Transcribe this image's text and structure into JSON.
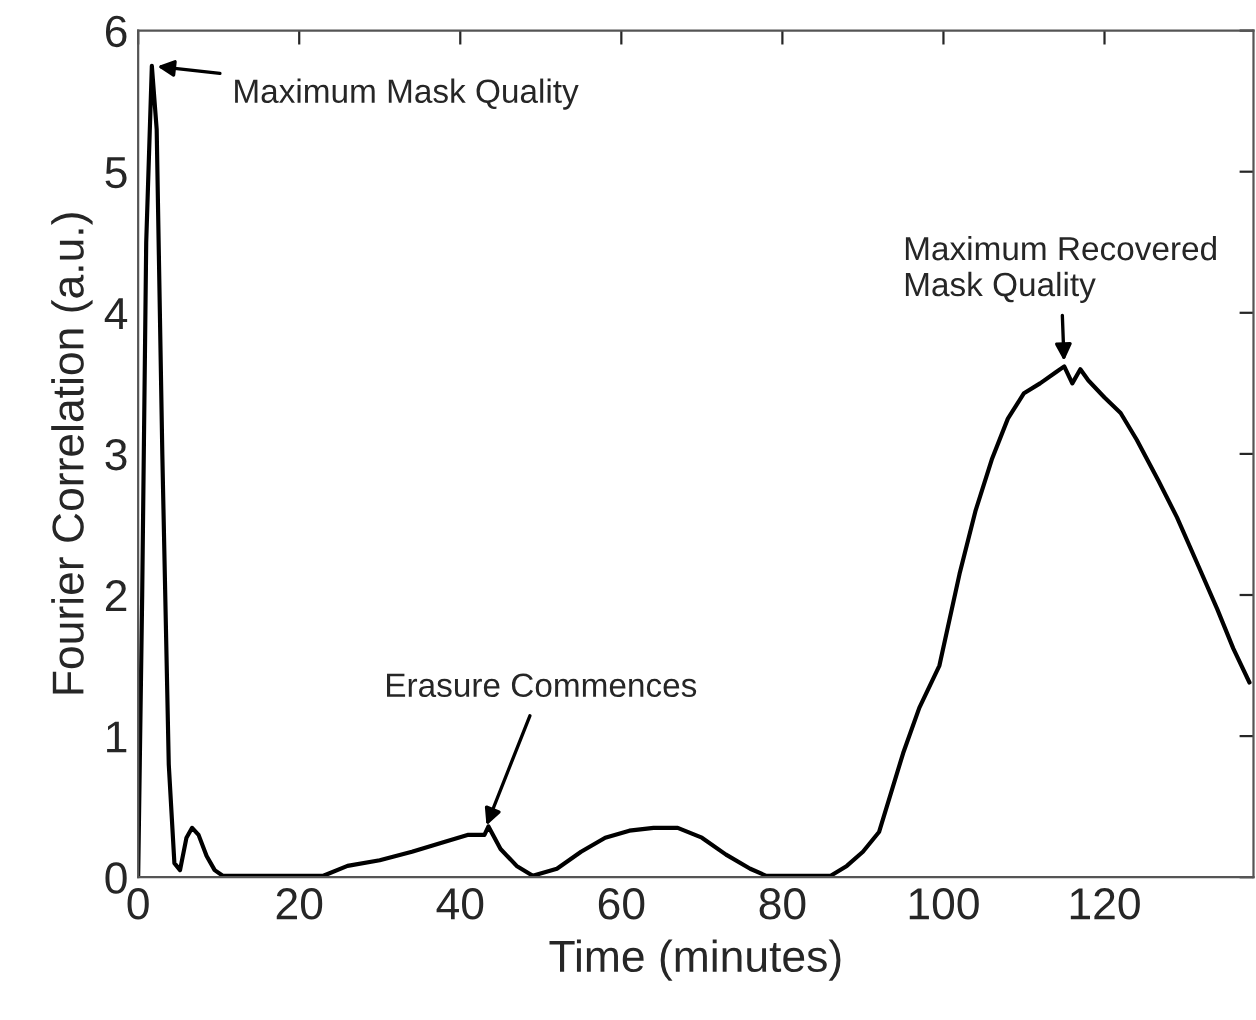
{
  "chart_data": {
    "type": "line",
    "xlabel": "Time (minutes)",
    "ylabel": "Fourier Correlation (a.u.)",
    "x": [
      0,
      0.5,
      1,
      1.7,
      2.3,
      3,
      3.8,
      4.5,
      5.2,
      6,
      6.7,
      7.5,
      8.5,
      9.5,
      10.5,
      15,
      20,
      23,
      26,
      30,
      34,
      38,
      41,
      43,
      43.5,
      45,
      47,
      49,
      52,
      55,
      58,
      61,
      64,
      67,
      70,
      73,
      76,
      78,
      82,
      86,
      88,
      90,
      92,
      95,
      97,
      99.5,
      102,
      104,
      106,
      108,
      110,
      112,
      114,
      115,
      116,
      117,
      118,
      120,
      122,
      124,
      126.7,
      129,
      131.7,
      134,
      136,
      138
    ],
    "values": [
      0,
      2.0,
      4.5,
      5.75,
      5.3,
      3.0,
      0.8,
      0.1,
      0.05,
      0.28,
      0.35,
      0.3,
      0.15,
      0.05,
      0.01,
      0.01,
      0.01,
      0.01,
      0.08,
      0.12,
      0.18,
      0.25,
      0.3,
      0.3,
      0.36,
      0.2,
      0.08,
      0.01,
      0.06,
      0.18,
      0.28,
      0.33,
      0.35,
      0.35,
      0.28,
      0.16,
      0.06,
      0.01,
      0.01,
      0.01,
      0.08,
      0.18,
      0.32,
      0.88,
      1.2,
      1.5,
      2.15,
      2.6,
      2.96,
      3.25,
      3.43,
      3.5,
      3.58,
      3.62,
      3.5,
      3.6,
      3.52,
      3.4,
      3.29,
      3.1,
      2.81,
      2.55,
      2.2,
      1.9,
      1.62,
      1.38
    ],
    "color": "#000000",
    "xlim": [
      0,
      138.5
    ],
    "ylim": [
      0,
      6
    ],
    "xticks": [
      0,
      20,
      40,
      60,
      80,
      100,
      120
    ],
    "yticks": [
      0,
      1,
      2,
      3,
      4,
      5,
      6
    ],
    "annotations": [
      {
        "text": "Maximum Mask Quality",
        "x": 1.7,
        "y": 5.75
      },
      {
        "text": "Erasure Commences",
        "x": 43,
        "y": 0.33
      },
      {
        "text": "Maximum Recovered\nMask Quality",
        "x": 115,
        "y": 3.62
      }
    ]
  }
}
